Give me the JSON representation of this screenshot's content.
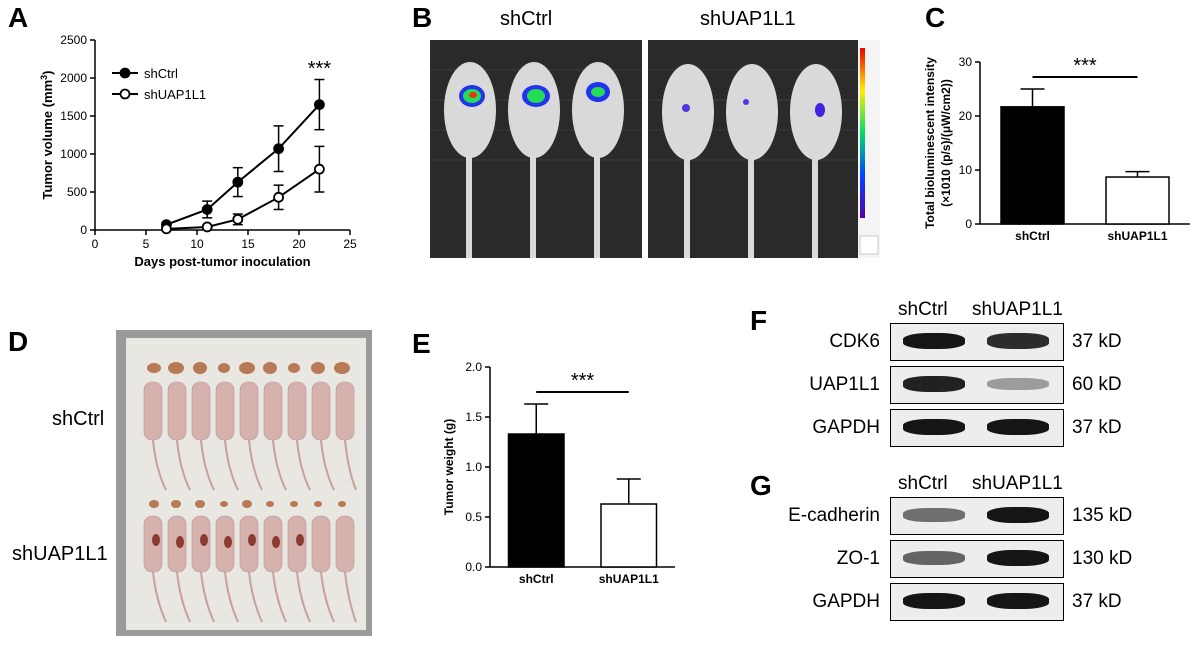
{
  "panels": {
    "A": "A",
    "B": "B",
    "C": "C",
    "D": "D",
    "E": "E",
    "F": "F",
    "G": "G"
  },
  "panel_b": {
    "groups": [
      "shCtrl",
      "shUAP1L1"
    ]
  },
  "panel_d": {
    "groups": [
      "shCtrl",
      "shUAP1L1"
    ]
  },
  "chart_data": [
    {
      "panel": "A",
      "type": "line",
      "xlabel": "Days post-tumor inoculation",
      "ylabel": "Tumor volume (mm3)",
      "xlim": [
        0,
        25
      ],
      "ylim": [
        0,
        2500
      ],
      "xticks": [
        0,
        5,
        10,
        15,
        20,
        25
      ],
      "yticks": [
        0,
        500,
        1000,
        1500,
        2000,
        2500
      ],
      "legend_position": "top-left",
      "annotation": "***",
      "series": [
        {
          "name": "shCtrl",
          "marker": "filled-circle",
          "x": [
            7,
            11,
            14,
            18,
            22
          ],
          "y": [
            70,
            270,
            630,
            1070,
            1650
          ],
          "err": [
            30,
            110,
            190,
            300,
            330
          ]
        },
        {
          "name": "shUAP1L1",
          "marker": "open-circle",
          "x": [
            7,
            11,
            14,
            18,
            22
          ],
          "y": [
            15,
            40,
            140,
            430,
            800
          ],
          "err": [
            10,
            20,
            70,
            160,
            300
          ]
        }
      ]
    },
    {
      "panel": "C",
      "type": "bar",
      "ylabel_line1": "Total bioluminescent intensity",
      "ylabel_line2": "(×1010 (p/s)/(μW/cm2))",
      "categories": [
        "shCtrl",
        "shUAP1L1"
      ],
      "values": [
        21.7,
        8.7
      ],
      "err": [
        3.3,
        1.0
      ],
      "colors": [
        "#000000",
        "#ffffff"
      ],
      "ylim": [
        0,
        30
      ],
      "yticks": [
        0,
        10,
        20,
        30
      ],
      "annotation": "***"
    },
    {
      "panel": "E",
      "type": "bar",
      "ylabel": "Tumor weight (g)",
      "categories": [
        "shCtrl",
        "shUAP1L1"
      ],
      "values": [
        1.33,
        0.63
      ],
      "err": [
        0.3,
        0.25
      ],
      "colors": [
        "#000000",
        "#ffffff"
      ],
      "ylim": [
        0,
        2.0
      ],
      "yticks": [
        "0.0",
        "0.5",
        "1.0",
        "1.5",
        "2.0"
      ],
      "annotation": "***"
    }
  ],
  "western_F": {
    "columns": [
      "shCtrl",
      "shUAP1L1"
    ],
    "rows": [
      {
        "protein": "CDK6",
        "kd": "37 kD",
        "intensity": [
          0.95,
          0.85
        ]
      },
      {
        "protein": "UAP1L1",
        "kd": "60 kD",
        "intensity": [
          0.9,
          0.35
        ]
      },
      {
        "protein": "GAPDH",
        "kd": "37 kD",
        "intensity": [
          0.95,
          0.95
        ]
      }
    ]
  },
  "western_G": {
    "columns": [
      "shCtrl",
      "shUAP1L1"
    ],
    "rows": [
      {
        "protein": "E-cadherin",
        "kd": "135 kD",
        "intensity": [
          0.55,
          0.95
        ]
      },
      {
        "protein": "ZO-1",
        "kd": "130 kD",
        "intensity": [
          0.6,
          0.95
        ]
      },
      {
        "protein": "GAPDH",
        "kd": "37 kD",
        "intensity": [
          0.95,
          0.95
        ]
      }
    ]
  },
  "colors": {
    "bar_dark": "#000000",
    "photo_bg": "#262626",
    "photo_light": "#dcdcdc",
    "tray_bg": "#e9e7e2",
    "mouse_pink": "#d6b2ae",
    "tumor_tan": "#b77a55"
  }
}
